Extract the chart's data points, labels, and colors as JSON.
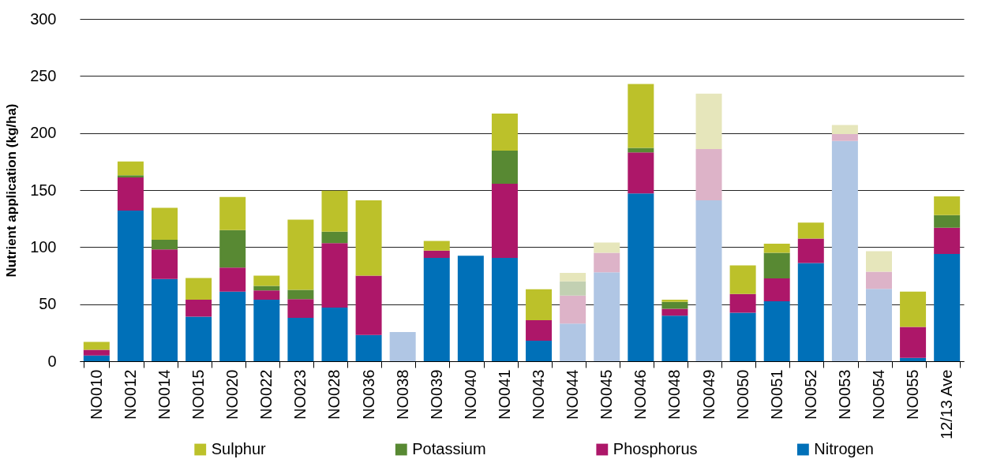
{
  "chart_data": {
    "type": "bar",
    "stacked": true,
    "ylabel": "Nutrient application (kg/ha)",
    "categories": [
      "NO010",
      "NO012",
      "NO014",
      "NO015",
      "NO020",
      "NO022",
      "NO023",
      "NO028",
      "NO036",
      "NO038",
      "NO039",
      "NO040",
      "NO041",
      "NO043",
      "NO044",
      "NO045",
      "NO046",
      "NO048",
      "NO049",
      "NO050",
      "NO051",
      "NO052",
      "NO053",
      "NO054",
      "NO055",
      "12/13 Ave"
    ],
    "series": [
      {
        "name": "Nitrogen",
        "color": "#0070b8",
        "colors": [
          "#0070b8",
          "#0070b8",
          "#0070b8",
          "#0070b8",
          "#0070b8",
          "#0070b8",
          "#0070b8",
          "#0070b8",
          "#0070b8",
          "#b0c6e4",
          "#0070b8",
          "#0070b8",
          "#0070b8",
          "#0070b8",
          "#b0c6e4",
          "#b0c6e4",
          "#0070b8",
          "#0070b8",
          "#b0c6e4",
          "#0070b8",
          "#0070b8",
          "#0070b8",
          "#b0c6e4",
          "#b0c6e4",
          "#0070b8",
          "#0070b8"
        ],
        "values": [
          5,
          132,
          72,
          39,
          61,
          54,
          38,
          47,
          23,
          25.5,
          90.5,
          92.5,
          90.5,
          18,
          33,
          78,
          147,
          40,
          141,
          42.5,
          52.5,
          86,
          193,
          63.5,
          3,
          94
        ]
      },
      {
        "name": "Phosphorus",
        "color": "#ad1769",
        "colors": [
          "#ad1769",
          "#ad1769",
          "#ad1769",
          "#ad1769",
          "#ad1769",
          "#ad1769",
          "#ad1769",
          "#ad1769",
          "#ad1769",
          "#ddb3c8",
          "#ad1769",
          "#ad1769",
          "#ad1769",
          "#ad1769",
          "#ddb3c8",
          "#ddb3c8",
          "#ad1769",
          "#ad1769",
          "#ddb3c8",
          "#ad1769",
          "#ad1769",
          "#ad1769",
          "#ddb3c8",
          "#ddb3c8",
          "#ad1769",
          "#ad1769"
        ],
        "values": [
          5,
          29,
          26,
          15,
          21,
          8,
          16.5,
          56.5,
          52,
          null,
          6.5,
          null,
          65,
          18,
          24.5,
          17,
          36,
          6,
          45,
          16.5,
          20,
          21.5,
          6,
          15,
          27,
          23
        ]
      },
      {
        "name": "Potassium",
        "color": "#588933",
        "colors": [
          "#588933",
          "#588933",
          "#588933",
          "#588933",
          "#588933",
          "#588933",
          "#588933",
          "#588933",
          "#588933",
          "#c2d0b2",
          "#588933",
          "#588933",
          "#588933",
          "#588933",
          "#c2d0b2",
          "#c2d0b2",
          "#588933",
          "#588933",
          "#c2d0b2",
          "#588933",
          "#588933",
          "#588933",
          "#c2d0b2",
          "#c2d0b2",
          "#588933",
          "#588933"
        ],
        "values": [
          null,
          2,
          8.5,
          null,
          33,
          4,
          8,
          10,
          null,
          null,
          null,
          null,
          29,
          null,
          12.5,
          null,
          4,
          6,
          null,
          null,
          22.5,
          null,
          null,
          null,
          null,
          11
        ]
      },
      {
        "name": "Sulphur",
        "color": "#bcc12a",
        "colors": [
          "#bcc12a",
          "#bcc12a",
          "#bcc12a",
          "#bcc12a",
          "#bcc12a",
          "#bcc12a",
          "#bcc12a",
          "#bcc12a",
          "#bcc12a",
          "#e6e6bb",
          "#bcc12a",
          "#bcc12a",
          "#bcc12a",
          "#bcc12a",
          "#e6e6bb",
          "#e6e6bb",
          "#bcc12a",
          "#bcc12a",
          "#e6e6bb",
          "#bcc12a",
          "#bcc12a",
          "#bcc12a",
          "#e6e6bb",
          "#e6e6bb",
          "#bcc12a",
          "#bcc12a"
        ],
        "values": [
          7,
          12,
          28,
          19,
          29,
          9,
          61.5,
          36,
          66,
          null,
          8.5,
          null,
          32.5,
          27,
          7.5,
          9,
          56,
          2,
          48.5,
          25,
          8,
          14,
          8,
          18,
          31,
          16.5
        ]
      }
    ],
    "ylim": [
      0,
      300
    ],
    "yticks": [
      0,
      50,
      100,
      150,
      200,
      250,
      300
    ],
    "grid": "y",
    "legend": "bottom"
  }
}
